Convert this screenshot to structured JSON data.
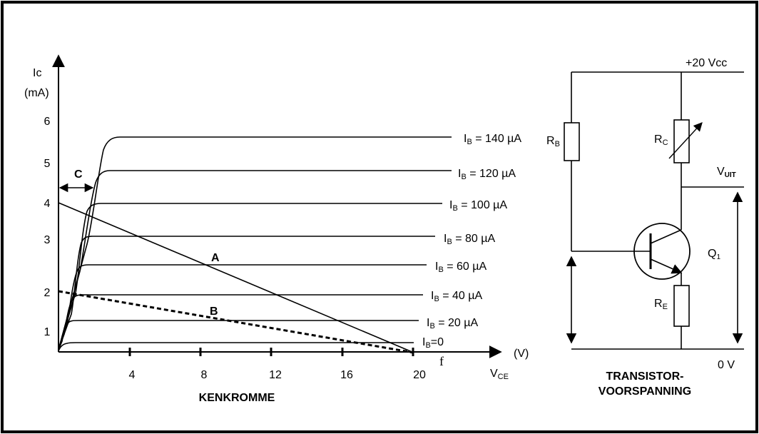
{
  "chart": {
    "y_axis_label_line1": "Ic",
    "y_axis_label_line2": "(mA)",
    "x_axis_unit": "(V)",
    "x_axis_label_main": "V",
    "x_axis_label_sub": "CE",
    "caption": "KENKROMME",
    "y_ticks": [
      "1",
      "2",
      "3",
      "4",
      "5",
      "6"
    ],
    "x_ticks": [
      "4",
      "8",
      "12",
      "16",
      "20"
    ],
    "curves": [
      {
        "label_main": "I",
        "label_sub": "B",
        "label_rest": " = 140 µA"
      },
      {
        "label_main": "I",
        "label_sub": "B",
        "label_rest": " =  120 µA"
      },
      {
        "label_main": "I",
        "label_sub": "B",
        "label_rest": " = 100 µA"
      },
      {
        "label_main": "I",
        "label_sub": "B",
        "label_rest": " =  80 µA"
      },
      {
        "label_main": "I",
        "label_sub": "B",
        "label_rest": " = 60 µA"
      },
      {
        "label_main": "I",
        "label_sub": "B",
        "label_rest": " =  40 µA"
      },
      {
        "label_main": "I",
        "label_sub": "B",
        "label_rest": " =  20 µA"
      },
      {
        "label_main": "I",
        "label_sub": "B",
        "label_rest": "=0"
      }
    ],
    "point_A": "A",
    "point_B": "B",
    "marker_C": "C",
    "marker_f": "f"
  },
  "chart_data": {
    "type": "line",
    "xlabel": "VCE (V)",
    "ylabel": "Ic (mA)",
    "xlim": [
      0,
      22
    ],
    "ylim": [
      0,
      7
    ],
    "series": [
      {
        "name": "IB = 140 µA",
        "saturation_ic": 5.4
      },
      {
        "name": "IB = 120 µA",
        "saturation_ic": 4.75
      },
      {
        "name": "IB = 100 µA",
        "saturation_ic": 4.0
      },
      {
        "name": "IB = 80 µA",
        "saturation_ic": 3.1
      },
      {
        "name": "IB = 60 µA",
        "saturation_ic": 2.35
      },
      {
        "name": "IB = 40 µA",
        "saturation_ic": 1.5
      },
      {
        "name": "IB = 20 µA",
        "saturation_ic": 0.85
      },
      {
        "name": "IB=0",
        "saturation_ic": 0.25
      }
    ],
    "load_lines": [
      {
        "name": "A",
        "x": [
          0,
          20
        ],
        "y": [
          4,
          0
        ],
        "style": "solid"
      },
      {
        "name": "B",
        "x": [
          0,
          20
        ],
        "y": [
          2,
          0
        ],
        "style": "dashed"
      }
    ]
  },
  "circuit": {
    "supply": "+20 Vcc",
    "rb_main": "R",
    "rb_sub": "B",
    "rc_main": "R",
    "rc_sub": "C",
    "re_main": "R",
    "re_sub": "E",
    "vuit_main": "V",
    "vuit_sub": "UIT",
    "q_main": "Q",
    "q_sub": "1",
    "ground": "0 V",
    "caption_line1": "TRANSISTOR-",
    "caption_line2": "VOORSPANNING"
  }
}
